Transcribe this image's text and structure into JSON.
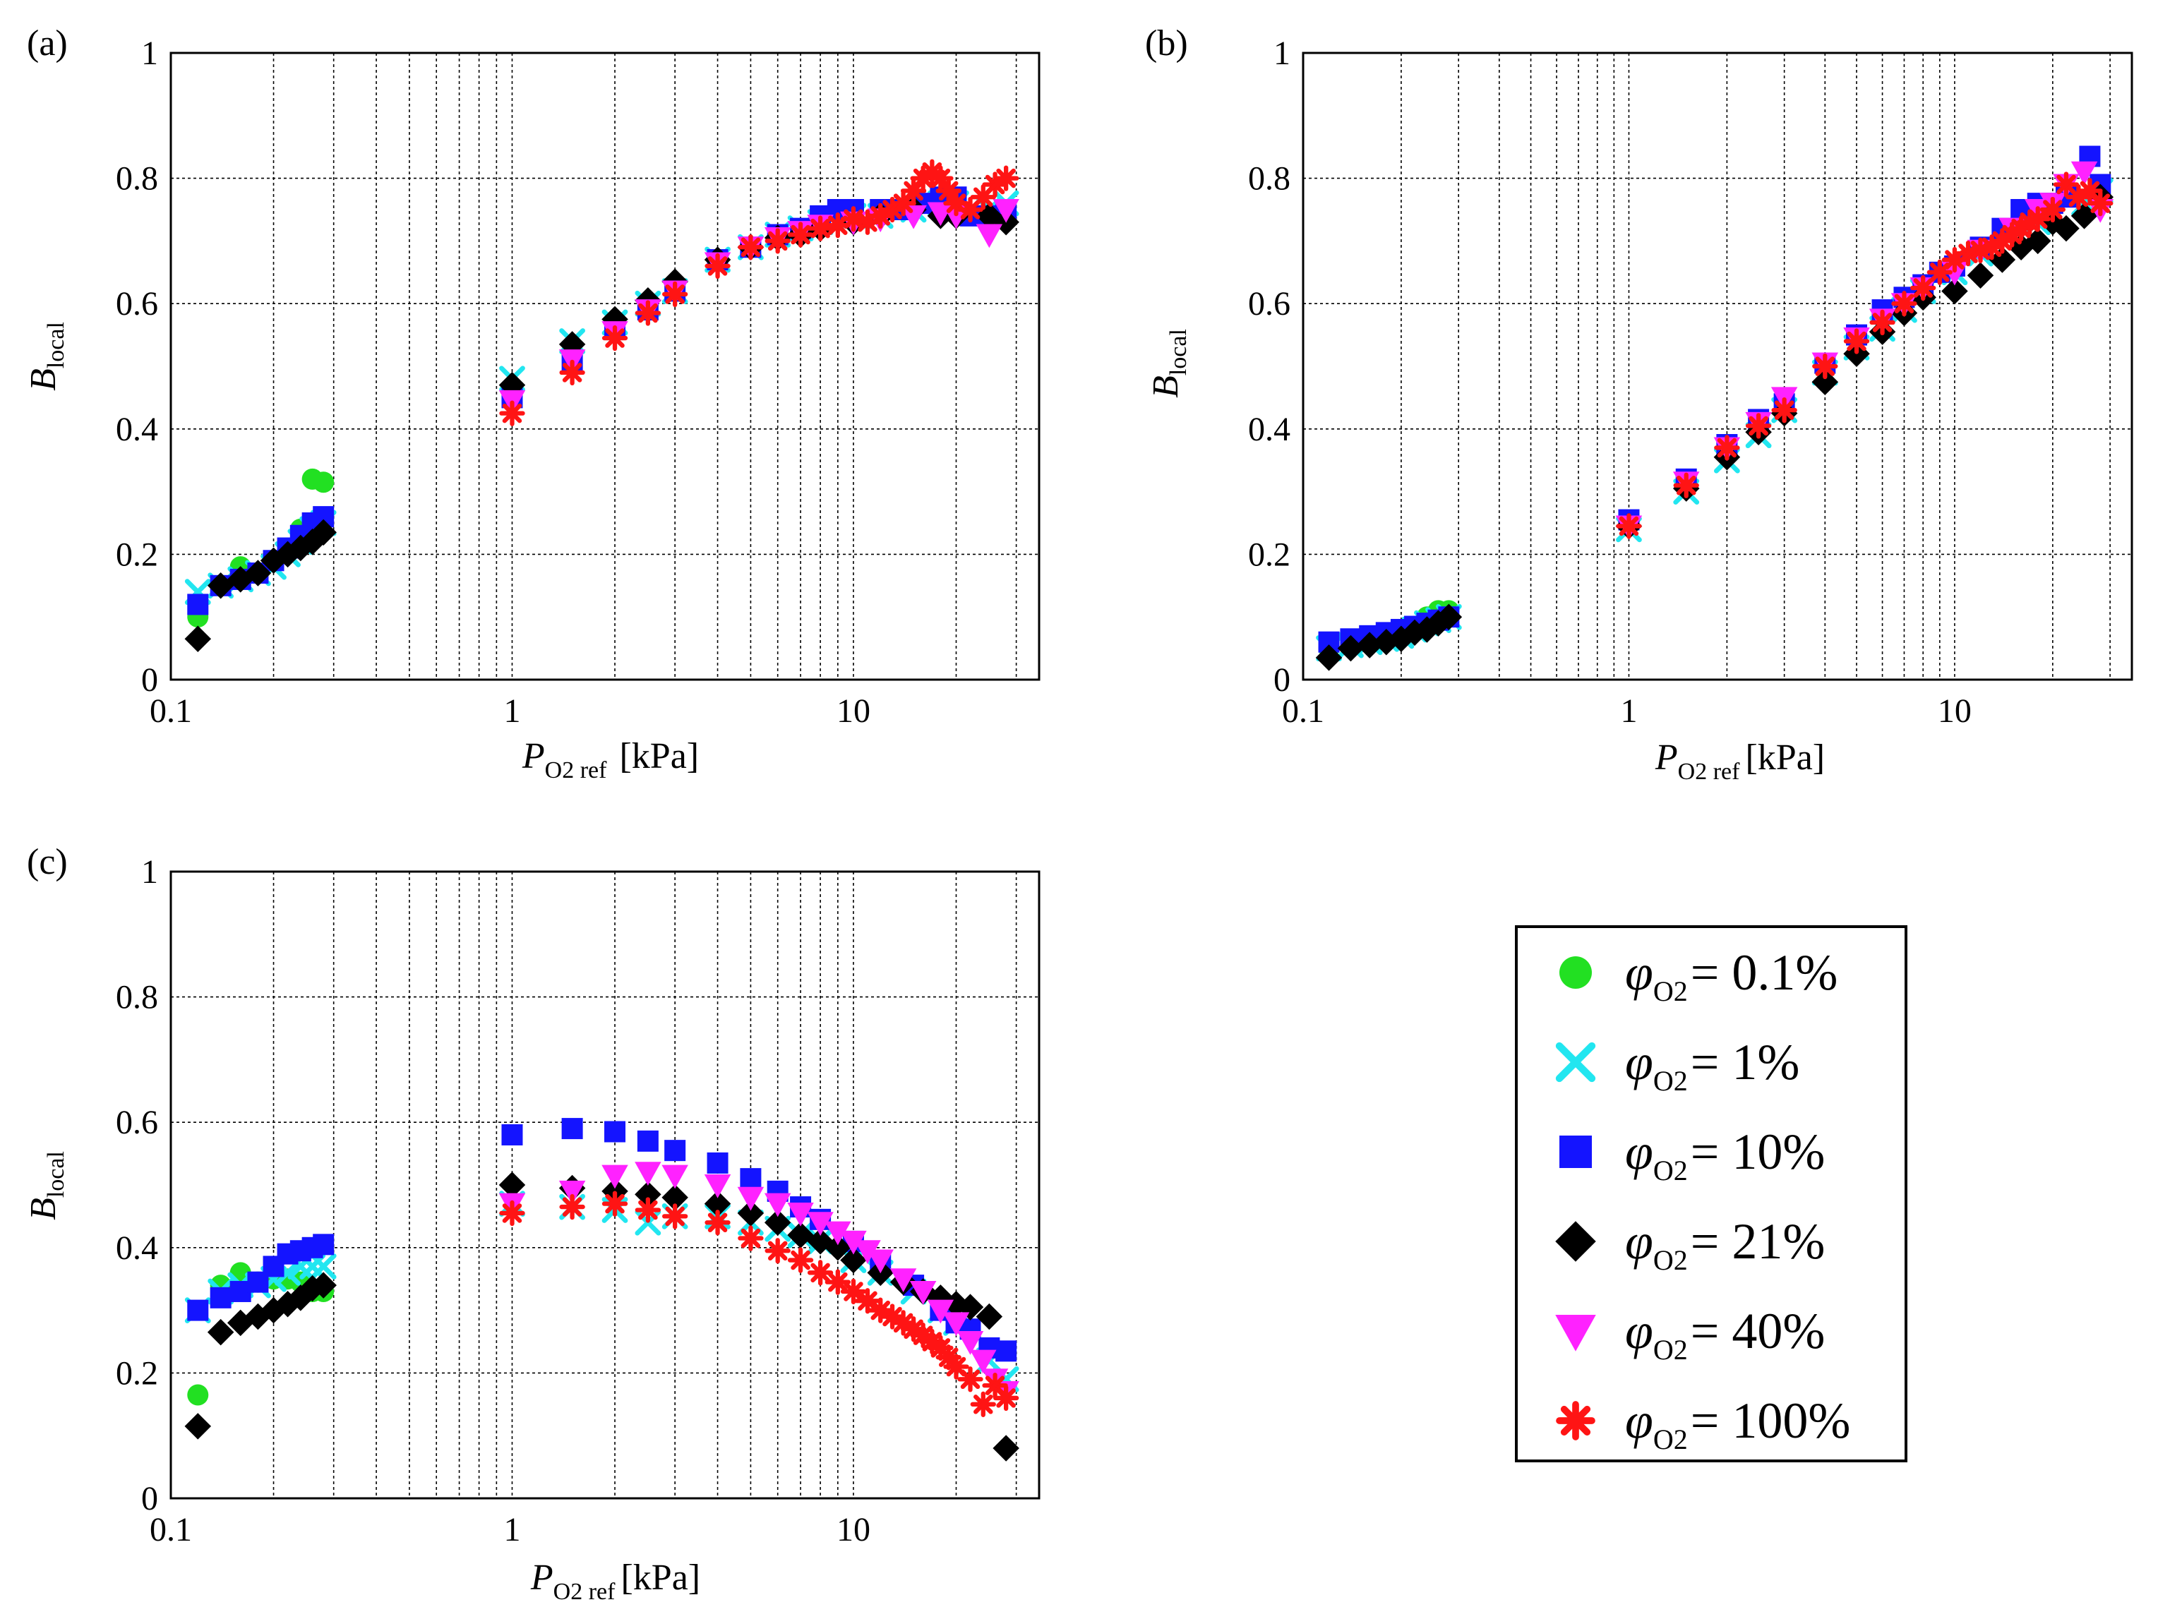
{
  "chart_data": [
    {
      "type": "scatter",
      "panel_label": "(a)",
      "x_scale": "log",
      "xlim": [
        0.1,
        35
      ],
      "ylim": [
        0,
        1
      ],
      "x_ticks": [
        0.1,
        1,
        10
      ],
      "x_tick_labels": [
        "0.1",
        "1",
        "10"
      ],
      "y_ticks": [
        0,
        0.2,
        0.4,
        0.6,
        0.8,
        1
      ],
      "y_tick_labels": [
        "0",
        "0.2",
        "0.4",
        "0.6",
        "0.8",
        "1"
      ],
      "grid": true,
      "xlabel": {
        "main": "P",
        "sub": "O2 ref",
        "unit": "[kPa]"
      },
      "ylabel": {
        "main": "B",
        "sub": "local"
      },
      "series": [
        {
          "name": "φO2 = 0.1%",
          "x": [
            0.12,
            0.14,
            0.16,
            0.18,
            0.2,
            0.22,
            0.24,
            0.26,
            0.28
          ],
          "y": [
            0.1,
            0.15,
            0.18,
            0.17,
            0.19,
            0.21,
            0.24,
            0.32,
            0.315
          ]
        },
        {
          "name": "φO2 = 1%",
          "x": [
            0.12,
            0.14,
            0.16,
            0.18,
            0.2,
            0.22,
            0.24,
            0.26,
            0.28,
            1,
            1.5,
            2,
            2.5,
            3,
            4,
            5,
            6,
            7,
            8,
            10,
            12,
            15,
            18,
            20,
            25,
            28
          ],
          "y": [
            0.14,
            0.15,
            0.16,
            0.17,
            0.18,
            0.2,
            0.22,
            0.24,
            0.25,
            0.48,
            0.54,
            0.57,
            0.6,
            0.62,
            0.67,
            0.69,
            0.71,
            0.72,
            0.73,
            0.74,
            0.74,
            0.75,
            0.76,
            0.76,
            0.75,
            0.76
          ]
        },
        {
          "name": "φO2 = 10%",
          "x": [
            0.12,
            0.14,
            0.16,
            0.18,
            0.2,
            0.22,
            0.24,
            0.26,
            0.28,
            1,
            1.5,
            2,
            2.5,
            3,
            4,
            5,
            6,
            7,
            8,
            9,
            10,
            12,
            14,
            16,
            18,
            20,
            22,
            25,
            28
          ],
          "y": [
            0.12,
            0.15,
            0.16,
            0.17,
            0.19,
            0.21,
            0.23,
            0.25,
            0.26,
            0.45,
            0.51,
            0.56,
            0.59,
            0.62,
            0.67,
            0.69,
            0.71,
            0.72,
            0.74,
            0.75,
            0.75,
            0.75,
            0.75,
            0.76,
            0.77,
            0.77,
            0.74,
            0.74,
            0.75
          ]
        },
        {
          "name": "φO2 = 21%",
          "x": [
            0.12,
            0.14,
            0.16,
            0.18,
            0.2,
            0.22,
            0.24,
            0.26,
            0.28,
            1,
            1.5,
            2,
            2.5,
            3,
            4,
            5,
            6,
            7,
            8,
            10,
            12,
            15,
            18,
            20,
            25,
            28
          ],
          "y": [
            0.065,
            0.15,
            0.16,
            0.17,
            0.19,
            0.2,
            0.21,
            0.22,
            0.235,
            0.47,
            0.535,
            0.575,
            0.605,
            0.635,
            0.67,
            0.69,
            0.705,
            0.71,
            0.72,
            0.73,
            0.74,
            0.75,
            0.74,
            0.74,
            0.74,
            0.73
          ]
        },
        {
          "name": "φO2 = 40%",
          "x": [
            1,
            1.5,
            2,
            2.5,
            3,
            4,
            5,
            6,
            7,
            8,
            10,
            12,
            15,
            18,
            20,
            25,
            28
          ],
          "y": [
            0.445,
            0.51,
            0.555,
            0.59,
            0.62,
            0.665,
            0.69,
            0.705,
            0.715,
            0.725,
            0.73,
            0.735,
            0.74,
            0.745,
            0.74,
            0.71,
            0.75
          ]
        },
        {
          "name": "φO2 = 100%",
          "x": [
            1,
            1.5,
            2,
            2.5,
            3,
            4,
            5,
            6,
            7,
            8,
            9,
            10,
            11,
            12,
            13,
            14,
            15,
            16,
            17,
            18,
            19,
            20,
            22,
            24,
            26,
            28
          ],
          "y": [
            0.425,
            0.49,
            0.545,
            0.585,
            0.615,
            0.66,
            0.69,
            0.7,
            0.71,
            0.72,
            0.725,
            0.735,
            0.73,
            0.74,
            0.75,
            0.76,
            0.78,
            0.8,
            0.81,
            0.8,
            0.78,
            0.76,
            0.75,
            0.77,
            0.79,
            0.8
          ]
        }
      ]
    },
    {
      "type": "scatter",
      "panel_label": "(b)",
      "x_scale": "log",
      "xlim": [
        0.1,
        35
      ],
      "ylim": [
        0,
        1
      ],
      "x_ticks": [
        0.1,
        1,
        10
      ],
      "x_tick_labels": [
        "0.1",
        "1",
        "10"
      ],
      "y_ticks": [
        0,
        0.2,
        0.4,
        0.6,
        0.8,
        1
      ],
      "y_tick_labels": [
        "0",
        "0.2",
        "0.4",
        "0.6",
        "0.8",
        "1"
      ],
      "grid": true,
      "xlabel": {
        "main": "P",
        "sub": "O2 ref",
        "unit": "[kPa]"
      },
      "ylabel": {
        "main": "B",
        "sub": "local"
      },
      "series": [
        {
          "name": "φO2 = 0.1%",
          "x": [
            0.12,
            0.14,
            0.16,
            0.18,
            0.2,
            0.22,
            0.24,
            0.26,
            0.28
          ],
          "y": [
            0.05,
            0.06,
            0.065,
            0.07,
            0.075,
            0.085,
            0.1,
            0.11,
            0.11
          ]
        },
        {
          "name": "φO2 = 1%",
          "x": [
            0.12,
            0.14,
            0.16,
            0.18,
            0.2,
            0.22,
            0.24,
            0.26,
            0.28,
            1,
            1.5,
            2,
            2.5,
            3,
            4,
            5,
            6,
            7,
            8,
            10,
            12,
            15,
            18,
            20,
            25,
            28
          ],
          "y": [
            0.05,
            0.055,
            0.06,
            0.065,
            0.07,
            0.08,
            0.09,
            0.095,
            0.1,
            0.24,
            0.3,
            0.35,
            0.39,
            0.43,
            0.49,
            0.53,
            0.56,
            0.59,
            0.62,
            0.65,
            0.68,
            0.71,
            0.73,
            0.74,
            0.76,
            0.78
          ]
        },
        {
          "name": "φO2 = 10%",
          "x": [
            0.12,
            0.14,
            0.16,
            0.18,
            0.2,
            0.22,
            0.24,
            0.26,
            0.28,
            1,
            1.5,
            2,
            2.5,
            3,
            4,
            5,
            6,
            7,
            8,
            9,
            10,
            12,
            14,
            16,
            18,
            20,
            22,
            26,
            28
          ],
          "y": [
            0.06,
            0.065,
            0.07,
            0.075,
            0.08,
            0.085,
            0.09,
            0.095,
            0.1,
            0.255,
            0.32,
            0.375,
            0.415,
            0.44,
            0.505,
            0.55,
            0.59,
            0.61,
            0.63,
            0.65,
            0.66,
            0.69,
            0.72,
            0.75,
            0.76,
            0.76,
            0.77,
            0.835,
            0.79
          ]
        },
        {
          "name": "φO2 = 21%",
          "x": [
            0.12,
            0.14,
            0.16,
            0.18,
            0.2,
            0.22,
            0.24,
            0.26,
            0.28,
            1,
            1.5,
            2,
            2.5,
            3,
            4,
            5,
            6,
            7,
            8,
            10,
            12,
            14,
            16,
            18,
            20,
            22,
            25,
            28
          ],
          "y": [
            0.035,
            0.05,
            0.055,
            0.06,
            0.065,
            0.075,
            0.08,
            0.09,
            0.1,
            0.245,
            0.305,
            0.355,
            0.395,
            0.425,
            0.475,
            0.52,
            0.555,
            0.585,
            0.61,
            0.62,
            0.645,
            0.67,
            0.69,
            0.7,
            0.73,
            0.72,
            0.74,
            0.77
          ]
        },
        {
          "name": "φO2 = 40%",
          "x": [
            1,
            1.5,
            2,
            2.5,
            3,
            4,
            5,
            6,
            7,
            8,
            10,
            12,
            15,
            18,
            20,
            22,
            25,
            28
          ],
          "y": [
            0.245,
            0.315,
            0.37,
            0.41,
            0.45,
            0.505,
            0.545,
            0.575,
            0.6,
            0.625,
            0.65,
            0.685,
            0.72,
            0.75,
            0.76,
            0.79,
            0.81,
            0.75
          ]
        },
        {
          "name": "φO2 = 100%",
          "x": [
            1,
            1.5,
            2,
            2.5,
            3,
            4,
            5,
            6,
            7,
            8,
            9,
            10,
            11,
            12,
            13,
            14,
            15,
            16,
            17,
            18,
            20,
            22,
            24,
            26,
            28
          ],
          "y": [
            0.245,
            0.31,
            0.37,
            0.405,
            0.43,
            0.5,
            0.54,
            0.57,
            0.6,
            0.625,
            0.65,
            0.67,
            0.68,
            0.685,
            0.69,
            0.7,
            0.71,
            0.72,
            0.73,
            0.735,
            0.75,
            0.79,
            0.77,
            0.78,
            0.76
          ]
        }
      ]
    },
    {
      "type": "scatter",
      "panel_label": "(c)",
      "x_scale": "log",
      "xlim": [
        0.1,
        35
      ],
      "ylim": [
        0,
        1
      ],
      "x_ticks": [
        0.1,
        1,
        10
      ],
      "x_tick_labels": [
        "0.1",
        "1",
        "10"
      ],
      "y_ticks": [
        0,
        0.2,
        0.4,
        0.6,
        0.8,
        1
      ],
      "y_tick_labels": [
        "0",
        "0.2",
        "0.4",
        "0.6",
        "0.8",
        "1"
      ],
      "grid": true,
      "xlabel": {
        "main": "P",
        "sub": "O2 ref",
        "unit": "[kPa]"
      },
      "ylabel": {
        "main": "B",
        "sub": "local"
      },
      "series": [
        {
          "name": "φO2 = 0.1%",
          "x": [
            0.12,
            0.14,
            0.16,
            0.18,
            0.2,
            0.22,
            0.24,
            0.26,
            0.28
          ],
          "y": [
            0.165,
            0.34,
            0.36,
            0.345,
            0.35,
            0.35,
            0.345,
            0.33,
            0.33
          ]
        },
        {
          "name": "φO2 = 1%",
          "x": [
            0.12,
            0.14,
            0.16,
            0.18,
            0.2,
            0.22,
            0.24,
            0.26,
            0.28,
            1,
            1.5,
            2,
            2.5,
            3,
            4,
            5,
            6,
            7,
            8,
            10,
            12,
            15,
            18,
            20,
            25,
            28
          ],
          "y": [
            0.3,
            0.33,
            0.34,
            0.34,
            0.35,
            0.36,
            0.37,
            0.37,
            0.37,
            0.47,
            0.465,
            0.46,
            0.44,
            0.45,
            0.45,
            0.44,
            0.43,
            0.42,
            0.41,
            0.38,
            0.36,
            0.33,
            0.3,
            0.28,
            0.22,
            0.19
          ]
        },
        {
          "name": "φO2 = 10%",
          "x": [
            0.12,
            0.14,
            0.16,
            0.18,
            0.2,
            0.22,
            0.24,
            0.26,
            0.28,
            1,
            1.5,
            2,
            2.5,
            3,
            4,
            5,
            6,
            7,
            8,
            10,
            12,
            15,
            18,
            20,
            22,
            25,
            28
          ],
          "y": [
            0.3,
            0.32,
            0.33,
            0.345,
            0.37,
            0.39,
            0.395,
            0.4,
            0.405,
            0.58,
            0.59,
            0.585,
            0.57,
            0.555,
            0.535,
            0.51,
            0.49,
            0.465,
            0.445,
            0.41,
            0.38,
            0.34,
            0.3,
            0.28,
            0.27,
            0.24,
            0.235
          ]
        },
        {
          "name": "φO2 = 21%",
          "x": [
            0.12,
            0.14,
            0.16,
            0.18,
            0.2,
            0.22,
            0.24,
            0.26,
            0.28,
            1,
            1.5,
            2,
            2.5,
            3,
            4,
            5,
            6,
            7,
            8,
            9,
            10,
            12,
            14,
            16,
            18,
            20,
            22,
            25,
            28
          ],
          "y": [
            0.115,
            0.265,
            0.28,
            0.29,
            0.3,
            0.31,
            0.32,
            0.335,
            0.34,
            0.5,
            0.495,
            0.49,
            0.485,
            0.48,
            0.47,
            0.455,
            0.44,
            0.42,
            0.41,
            0.4,
            0.38,
            0.36,
            0.345,
            0.33,
            0.32,
            0.31,
            0.305,
            0.29,
            0.08
          ]
        },
        {
          "name": "φO2 = 40%",
          "x": [
            1,
            1.5,
            2,
            2.5,
            3,
            4,
            5,
            6,
            7,
            8,
            9,
            10,
            11,
            12,
            14,
            16,
            18,
            20,
            22,
            24,
            26,
            28
          ],
          "y": [
            0.47,
            0.49,
            0.515,
            0.52,
            0.515,
            0.5,
            0.48,
            0.47,
            0.455,
            0.44,
            0.425,
            0.41,
            0.395,
            0.38,
            0.35,
            0.33,
            0.3,
            0.28,
            0.25,
            0.22,
            0.19,
            0.17
          ]
        },
        {
          "name": "φO2 = 100%",
          "x": [
            1,
            1.5,
            2,
            2.5,
            3,
            4,
            5,
            6,
            7,
            8,
            9,
            10,
            11,
            12,
            13,
            14,
            15,
            16,
            17,
            18,
            19,
            20,
            22,
            24,
            26,
            28
          ],
          "y": [
            0.455,
            0.465,
            0.47,
            0.46,
            0.45,
            0.44,
            0.415,
            0.395,
            0.38,
            0.36,
            0.345,
            0.33,
            0.315,
            0.3,
            0.29,
            0.28,
            0.27,
            0.26,
            0.25,
            0.24,
            0.225,
            0.21,
            0.19,
            0.15,
            0.18,
            0.16
          ]
        }
      ]
    }
  ],
  "legend": {
    "placement": "bottom-right",
    "entries": [
      {
        "symbol": "φ",
        "sub": "O2",
        "text": "= 0.1%",
        "marker": "circle",
        "color": "#22e022"
      },
      {
        "symbol": "φ",
        "sub": "O2",
        "text": "= 1%",
        "marker": "cross",
        "color": "#22e6f0"
      },
      {
        "symbol": "φ",
        "sub": "O2",
        "text": "= 10%",
        "marker": "square",
        "color": "#1414ff"
      },
      {
        "symbol": "φ",
        "sub": "O2",
        "text": "= 21%",
        "marker": "diamond",
        "color": "#000000"
      },
      {
        "symbol": "φ",
        "sub": "O2",
        "text": "= 40%",
        "marker": "triangle-down",
        "color": "#ff22ff"
      },
      {
        "symbol": "φ",
        "sub": "O2",
        "text": "= 100%",
        "marker": "asterisk",
        "color": "#ff1414"
      }
    ]
  }
}
